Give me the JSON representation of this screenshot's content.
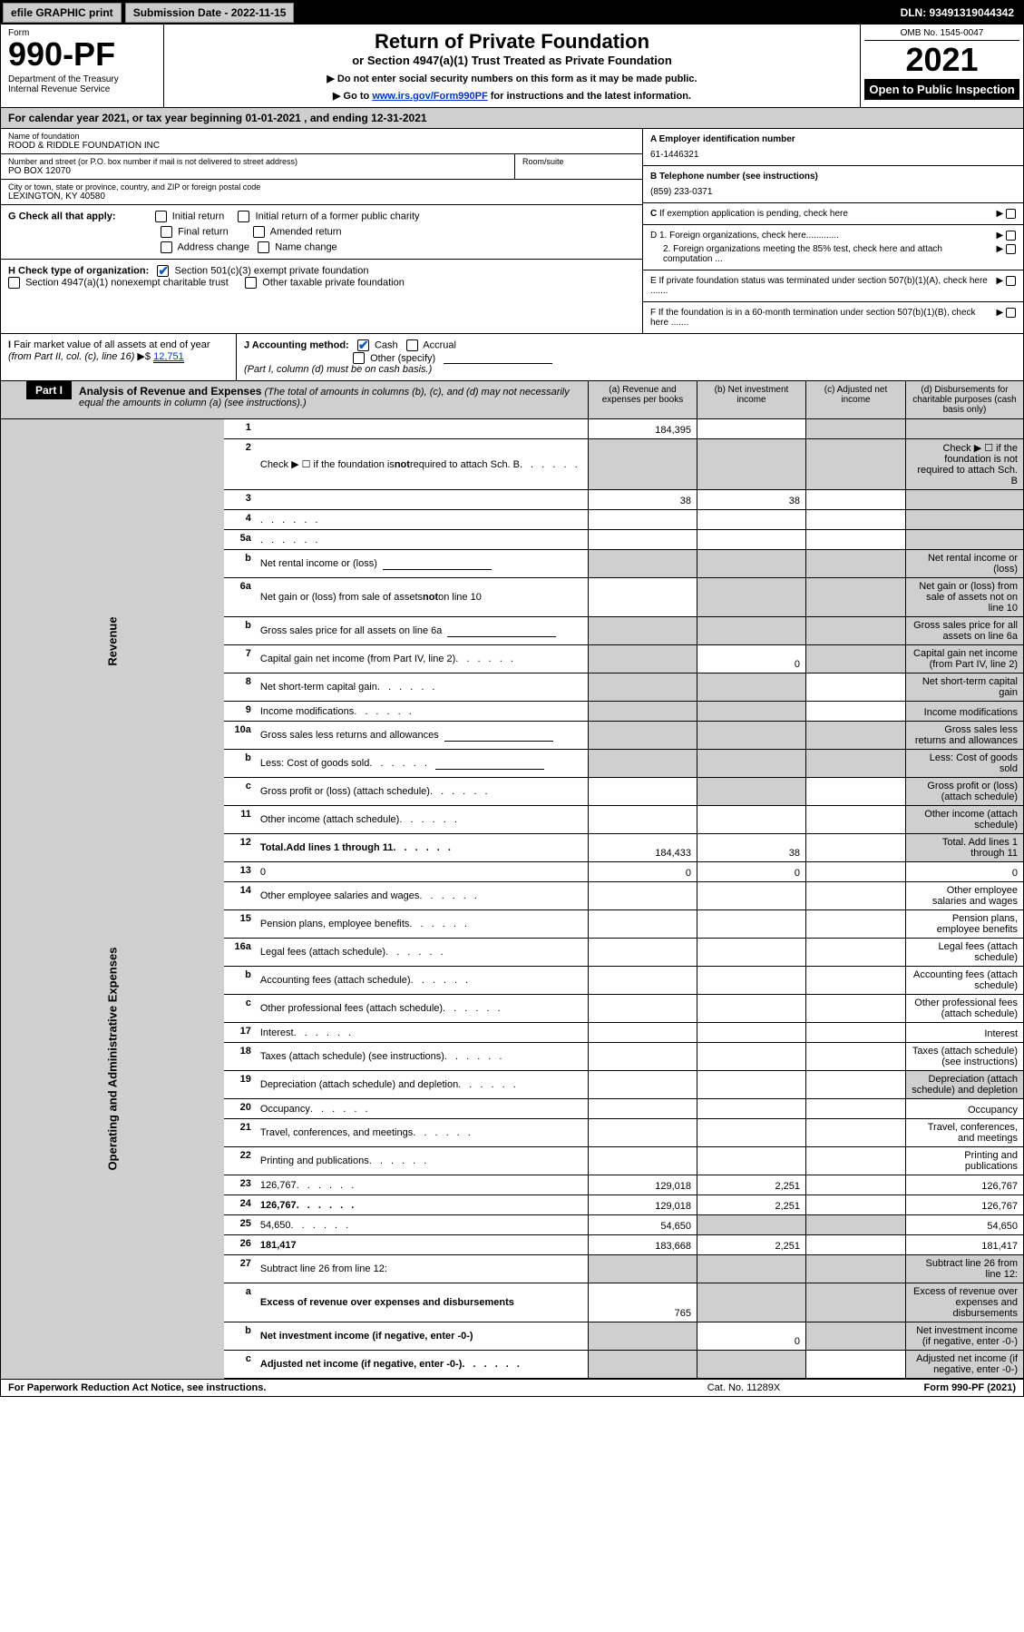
{
  "top": {
    "efile": "efile GRAPHIC print",
    "sub_date_label": "Submission Date - 2022-11-15",
    "dln": "DLN: 93491319044342"
  },
  "header": {
    "form_label": "Form",
    "form_num": "990-PF",
    "dept": "Department of the Treasury\nInternal Revenue Service",
    "title": "Return of Private Foundation",
    "subtitle": "or Section 4947(a)(1) Trust Treated as Private Foundation",
    "note1": "▶ Do not enter social security numbers on this form as it may be made public.",
    "note2_pre": "▶ Go to ",
    "note2_link": "www.irs.gov/Form990PF",
    "note2_post": " for instructions and the latest information.",
    "omb": "OMB No. 1545-0047",
    "year": "2021",
    "open": "Open to Public Inspection"
  },
  "cal_year": "For calendar year 2021, or tax year beginning 01-01-2021               , and ending 12-31-2021",
  "org": {
    "name_label": "Name of foundation",
    "name": "ROOD & RIDDLE FOUNDATION INC",
    "addr_label": "Number and street (or P.O. box number if mail is not delivered to street address)",
    "addr": "PO BOX 12070",
    "room_label": "Room/suite",
    "city_label": "City or town, state or province, country, and ZIP or foreign postal code",
    "city": "LEXINGTON, KY  40580"
  },
  "right": {
    "a_label": "A Employer identification number",
    "a_val": "61-1446321",
    "b_label": "B Telephone number (see instructions)",
    "b_val": "(859) 233-0371",
    "c_label": "C If exemption application is pending, check here",
    "d1_label": "D 1. Foreign organizations, check here.............",
    "d2_label": "2. Foreign organizations meeting the 85% test, check here and attach computation ...",
    "e_label": "E  If private foundation status was terminated under section 507(b)(1)(A), check here .......",
    "f_label": "F  If the foundation is in a 60-month termination under section 507(b)(1)(B), check here ......."
  },
  "g": {
    "label": "G Check all that apply:",
    "opts": [
      "Initial return",
      "Initial return of a former public charity",
      "Final return",
      "Amended return",
      "Address change",
      "Name change"
    ]
  },
  "h": {
    "label": "H Check type of organization:",
    "opt1": "Section 501(c)(3) exempt private foundation",
    "opt2": "Section 4947(a)(1) nonexempt charitable trust",
    "opt3": "Other taxable private foundation"
  },
  "i": {
    "label": "I Fair market value of all assets at end of year (from Part II, col. (c), line 16)",
    "val": "12,751"
  },
  "j": {
    "label": "J Accounting method:",
    "cash": "Cash",
    "accrual": "Accrual",
    "other": "Other (specify)",
    "note": "(Part I, column (d) must be on cash basis.)"
  },
  "part1": {
    "label": "Part I",
    "title": "Analysis of Revenue and Expenses",
    "note": "(The total of amounts in columns (b), (c), and (d) may not necessarily equal the amounts in column (a) (see instructions).)",
    "col_a": "(a)   Revenue and expenses per books",
    "col_b": "(b)   Net investment income",
    "col_c": "(c)   Adjusted net income",
    "col_d": "(d)   Disbursements for charitable purposes (cash basis only)"
  },
  "sides": {
    "revenue": "Revenue",
    "expenses": "Operating and Administrative Expenses"
  },
  "lines": [
    {
      "n": "1",
      "d": "",
      "a": "184,395",
      "b": "",
      "c": "",
      "sh": [
        "c",
        "d"
      ]
    },
    {
      "n": "2",
      "d": "Check ▶ ☐ if the foundation is not required to attach Sch. B",
      "dot": true,
      "nocols": true,
      "sh": [
        "a",
        "b",
        "c",
        "d"
      ]
    },
    {
      "n": "3",
      "d": "",
      "a": "38",
      "b": "38",
      "c": "",
      "sh": [
        "d"
      ]
    },
    {
      "n": "4",
      "d": "",
      "dot": true,
      "a": "",
      "b": "",
      "c": "",
      "sh": [
        "d"
      ]
    },
    {
      "n": "5a",
      "d": "",
      "dot": true,
      "a": "",
      "b": "",
      "c": "",
      "sh": [
        "d"
      ]
    },
    {
      "n": "b",
      "d": "Net rental income or (loss)",
      "ul": true,
      "sh": [
        "a",
        "b",
        "c",
        "d"
      ]
    },
    {
      "n": "6a",
      "d": "Net gain or (loss) from sale of assets not on line 10",
      "a": "",
      "sh": [
        "b",
        "c",
        "d"
      ]
    },
    {
      "n": "b",
      "d": "Gross sales price for all assets on line 6a",
      "ul": true,
      "sh": [
        "a",
        "b",
        "c",
        "d"
      ]
    },
    {
      "n": "7",
      "d": "Capital gain net income (from Part IV, line 2)",
      "dot": true,
      "b": "0",
      "sh": [
        "a",
        "c",
        "d"
      ]
    },
    {
      "n": "8",
      "d": "Net short-term capital gain",
      "dot": true,
      "sh": [
        "a",
        "b",
        "d"
      ]
    },
    {
      "n": "9",
      "d": "Income modifications",
      "dot": true,
      "sh": [
        "a",
        "b",
        "d"
      ]
    },
    {
      "n": "10a",
      "d": "Gross sales less returns and allowances",
      "ul": true,
      "sh": [
        "a",
        "b",
        "c",
        "d"
      ]
    },
    {
      "n": "b",
      "d": "Less: Cost of goods sold",
      "dot": true,
      "ul": true,
      "sh": [
        "a",
        "b",
        "c",
        "d"
      ]
    },
    {
      "n": "c",
      "d": "Gross profit or (loss) (attach schedule)",
      "dot": true,
      "sh": [
        "b",
        "d"
      ]
    },
    {
      "n": "11",
      "d": "Other income (attach schedule)",
      "dot": true,
      "a": "",
      "b": "",
      "c": "",
      "sh": [
        "d"
      ]
    },
    {
      "n": "12",
      "d": "Total. Add lines 1 through 11",
      "dot": true,
      "bold": true,
      "a": "184,433",
      "b": "38",
      "c": "",
      "sh": [
        "d"
      ]
    }
  ],
  "exp_lines": [
    {
      "n": "13",
      "d": "0",
      "a": "0",
      "b": "0",
      "c": ""
    },
    {
      "n": "14",
      "d": "Other employee salaries and wages",
      "dot": true
    },
    {
      "n": "15",
      "d": "Pension plans, employee benefits",
      "dot": true
    },
    {
      "n": "16a",
      "d": "Legal fees (attach schedule)",
      "dot": true
    },
    {
      "n": "b",
      "d": "Accounting fees (attach schedule)",
      "dot": true
    },
    {
      "n": "c",
      "d": "Other professional fees (attach schedule)",
      "dot": true
    },
    {
      "n": "17",
      "d": "Interest",
      "dot": true
    },
    {
      "n": "18",
      "d": "Taxes (attach schedule) (see instructions)",
      "dot": true
    },
    {
      "n": "19",
      "d": "Depreciation (attach schedule) and depletion",
      "dot": true,
      "sh": [
        "d"
      ]
    },
    {
      "n": "20",
      "d": "Occupancy",
      "dot": true
    },
    {
      "n": "21",
      "d": "Travel, conferences, and meetings",
      "dot": true
    },
    {
      "n": "22",
      "d": "Printing and publications",
      "dot": true
    },
    {
      "n": "23",
      "d": "126,767",
      "dot": true,
      "a": "129,018",
      "b": "2,251",
      "c": ""
    },
    {
      "n": "24",
      "d": "126,767",
      "dot": true,
      "bold": true,
      "a": "129,018",
      "b": "2,251",
      "c": ""
    },
    {
      "n": "25",
      "d": "54,650",
      "dot": true,
      "a": "54,650",
      "sh": [
        "b",
        "c"
      ]
    },
    {
      "n": "26",
      "d": "181,417",
      "bold": true,
      "a": "183,668",
      "b": "2,251",
      "c": ""
    }
  ],
  "net_lines": [
    {
      "n": "27",
      "d": "Subtract line 26 from line 12:",
      "sh": [
        "a",
        "b",
        "c",
        "d"
      ]
    },
    {
      "n": "a",
      "d": "Excess of revenue over expenses and disbursements",
      "bold": true,
      "a": "765",
      "sh": [
        "b",
        "c",
        "d"
      ]
    },
    {
      "n": "b",
      "d": "Net investment income (if negative, enter -0-)",
      "bold": true,
      "b": "0",
      "sh": [
        "a",
        "c",
        "d"
      ]
    },
    {
      "n": "c",
      "d": "Adjusted net income (if negative, enter -0-)",
      "bold": true,
      "dot": true,
      "sh": [
        "a",
        "b",
        "d"
      ]
    }
  ],
  "footer": {
    "left": "For Paperwork Reduction Act Notice, see instructions.",
    "mid": "Cat. No. 11289X",
    "right": "Form 990-PF (2021)"
  }
}
